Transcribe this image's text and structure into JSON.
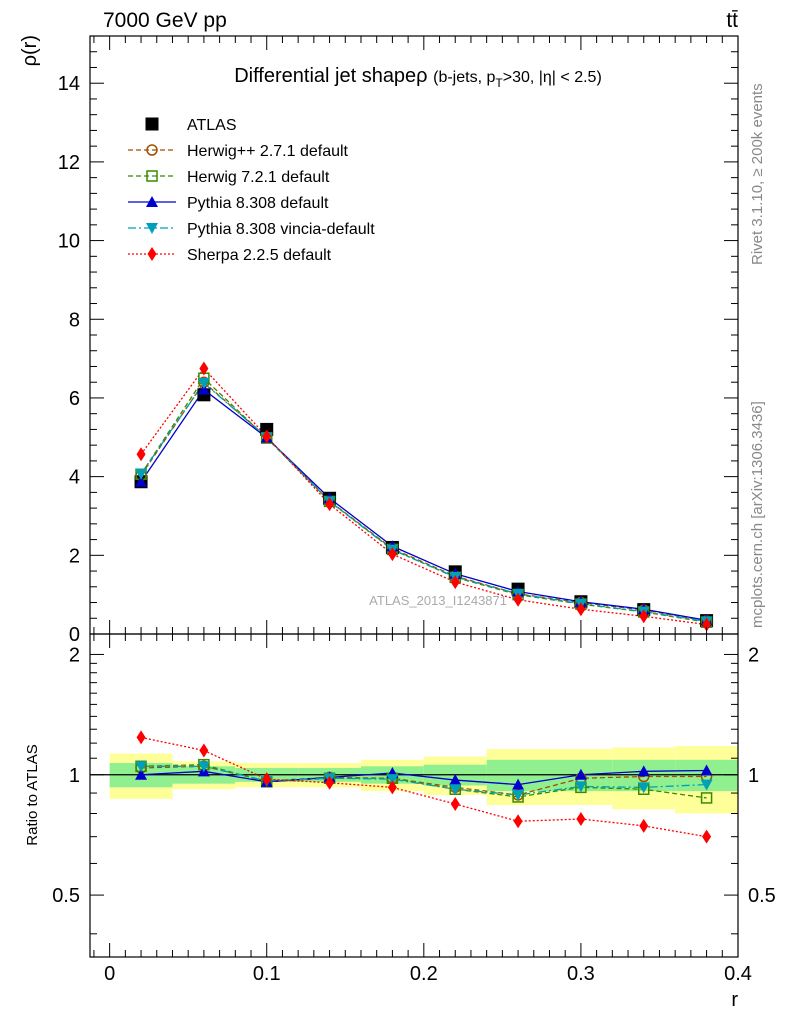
{
  "header": {
    "left": "7000 GeV pp",
    "right": "tt̄"
  },
  "side_labels": {
    "rivet": "Rivet 3.1.10, ≥ 200k events",
    "mcplots": "mcplots.cern.ch [arXiv:1306.3436]"
  },
  "watermark": "ATLAS_2013_I1243871",
  "chart_data": {
    "type": "line",
    "title": "Differential jet shapeρ",
    "title_suffix": "(b-jets, p",
    "title_sub": "T",
    "title_rest": ">30, |η| < 2.5)",
    "xlabel": "r",
    "ylabel": "ρ(r)",
    "ratio_ylabel": "Ratio to ATLAS",
    "xlim": [
      -0.0125,
      0.4
    ],
    "ylim": [
      0,
      15.2
    ],
    "ratio_ylim": [
      0.35,
      2.25
    ],
    "x_ticks": [
      "0",
      "0.1",
      "0.2",
      "0.3",
      "0.4"
    ],
    "y_ticks": [
      "0",
      "2",
      "4",
      "6",
      "8",
      "10",
      "12",
      "14"
    ],
    "ratio_ticks": [
      "0.5",
      "1",
      "2"
    ],
    "legend_position": "top-left",
    "x": [
      0.02,
      0.06,
      0.1,
      0.14,
      0.18,
      0.22,
      0.26,
      0.3,
      0.34,
      0.38
    ],
    "ratio_bands": {
      "edges": [
        0,
        0.04,
        0.08,
        0.12,
        0.16,
        0.2,
        0.24,
        0.28,
        0.32,
        0.36,
        0.4
      ],
      "inner": [
        [
          0.93,
          1.07
        ],
        [
          0.95,
          1.05
        ],
        [
          0.96,
          1.04
        ],
        [
          0.96,
          1.04
        ],
        [
          0.95,
          1.05
        ],
        [
          0.94,
          1.06
        ],
        [
          0.91,
          1.09
        ],
        [
          0.91,
          1.09
        ],
        [
          0.91,
          1.09
        ],
        [
          0.91,
          1.09
        ]
      ],
      "outer": [
        [
          0.87,
          1.13
        ],
        [
          0.92,
          1.08
        ],
        [
          0.93,
          1.07
        ],
        [
          0.93,
          1.07
        ],
        [
          0.91,
          1.09
        ],
        [
          0.89,
          1.11
        ],
        [
          0.84,
          1.16
        ],
        [
          0.84,
          1.16
        ],
        [
          0.82,
          1.17
        ],
        [
          0.8,
          1.18
        ]
      ],
      "inner_color": "#90f090",
      "outer_color": "#ffff99"
    },
    "series": [
      {
        "name": "ATLAS",
        "color": "#000000",
        "marker": "square-filled",
        "line": "none",
        "values": [
          3.87,
          6.08,
          5.2,
          3.45,
          2.2,
          1.58,
          1.14,
          0.82,
          0.62,
          0.34
        ]
      },
      {
        "name": "Herwig++ 2.7.1 default",
        "color": "#a05000",
        "marker": "circle-open",
        "line": "dashed",
        "values": [
          4.03,
          6.4,
          5.0,
          3.38,
          2.17,
          1.47,
          1.02,
          0.8,
          0.61,
          0.33
        ],
        "ratio": [
          1.04,
          1.05,
          0.965,
          0.985,
          0.98,
          0.93,
          0.89,
          0.98,
          0.99,
          0.99
        ]
      },
      {
        "name": "Herwig 7.2.1 default",
        "color": "#3a8a00",
        "marker": "square-open",
        "line": "dashed",
        "values": [
          4.06,
          6.5,
          4.98,
          3.37,
          2.15,
          1.44,
          1.0,
          0.76,
          0.56,
          0.3
        ],
        "ratio": [
          1.05,
          1.06,
          0.96,
          0.98,
          0.98,
          0.92,
          0.88,
          0.93,
          0.92,
          0.875
        ]
      },
      {
        "name": "Pythia 8.308 default",
        "color": "#0000cc",
        "marker": "triangle-up",
        "line": "solid",
        "values": [
          3.87,
          6.21,
          4.99,
          3.45,
          2.23,
          1.53,
          1.08,
          0.82,
          0.63,
          0.35
        ],
        "ratio": [
          1.0,
          1.02,
          0.96,
          0.985,
          1.01,
          0.97,
          0.945,
          1.0,
          1.02,
          1.025
        ]
      },
      {
        "name": "Pythia 8.308 vincia-default",
        "color": "#00a0b8",
        "marker": "triangle-down",
        "line": "dashdot",
        "values": [
          4.07,
          6.38,
          5.0,
          3.37,
          2.14,
          1.45,
          1.02,
          0.77,
          0.57,
          0.32
        ],
        "ratio": [
          1.05,
          1.05,
          0.965,
          0.98,
          0.975,
          0.92,
          0.89,
          0.935,
          0.93,
          0.945
        ]
      },
      {
        "name": "Sherpa 2.2.5 default",
        "color": "#ff0000",
        "marker": "diamond",
        "line": "dotted",
        "values": [
          4.57,
          6.75,
          5.02,
          3.3,
          2.03,
          1.32,
          0.87,
          0.63,
          0.45,
          0.24
        ],
        "ratio": [
          1.24,
          1.15,
          0.975,
          0.955,
          0.93,
          0.845,
          0.765,
          0.775,
          0.745,
          0.7
        ]
      }
    ]
  }
}
